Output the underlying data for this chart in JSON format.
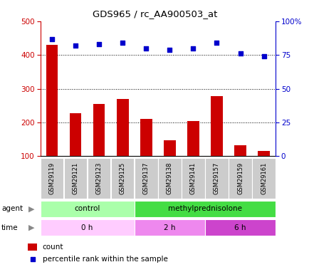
{
  "title": "GDS965 / rc_AA900503_at",
  "samples": [
    "GSM29119",
    "GSM29121",
    "GSM29123",
    "GSM29125",
    "GSM29137",
    "GSM29138",
    "GSM29141",
    "GSM29157",
    "GSM29159",
    "GSM29161"
  ],
  "counts": [
    430,
    228,
    255,
    270,
    210,
    148,
    205,
    278,
    132,
    115
  ],
  "percentiles": [
    87,
    82,
    83,
    84,
    80,
    79,
    80,
    84,
    76,
    74
  ],
  "bar_color": "#cc0000",
  "dot_color": "#0000cc",
  "ylim_left": [
    100,
    500
  ],
  "ylim_right": [
    0,
    100
  ],
  "yticks_left": [
    100,
    200,
    300,
    400,
    500
  ],
  "yticks_right": [
    0,
    25,
    50,
    75,
    100
  ],
  "yticklabels_right": [
    "0",
    "25",
    "50",
    "75",
    "100%"
  ],
  "grid_values": [
    200,
    300,
    400
  ],
  "agent_labels": [
    {
      "label": "control",
      "start": 0,
      "end": 4,
      "color": "#aaffaa"
    },
    {
      "label": "methylprednisolone",
      "start": 4,
      "end": 10,
      "color": "#44dd44"
    }
  ],
  "time_labels": [
    {
      "label": "0 h",
      "start": 0,
      "end": 4,
      "color": "#ffccff"
    },
    {
      "label": "2 h",
      "start": 4,
      "end": 7,
      "color": "#ee88ee"
    },
    {
      "label": "6 h",
      "start": 7,
      "end": 10,
      "color": "#cc44cc"
    }
  ],
  "legend_count_label": "count",
  "legend_pct_label": "percentile rank within the sample",
  "agent_text": "agent",
  "time_text": "time",
  "background_color": "#ffffff"
}
